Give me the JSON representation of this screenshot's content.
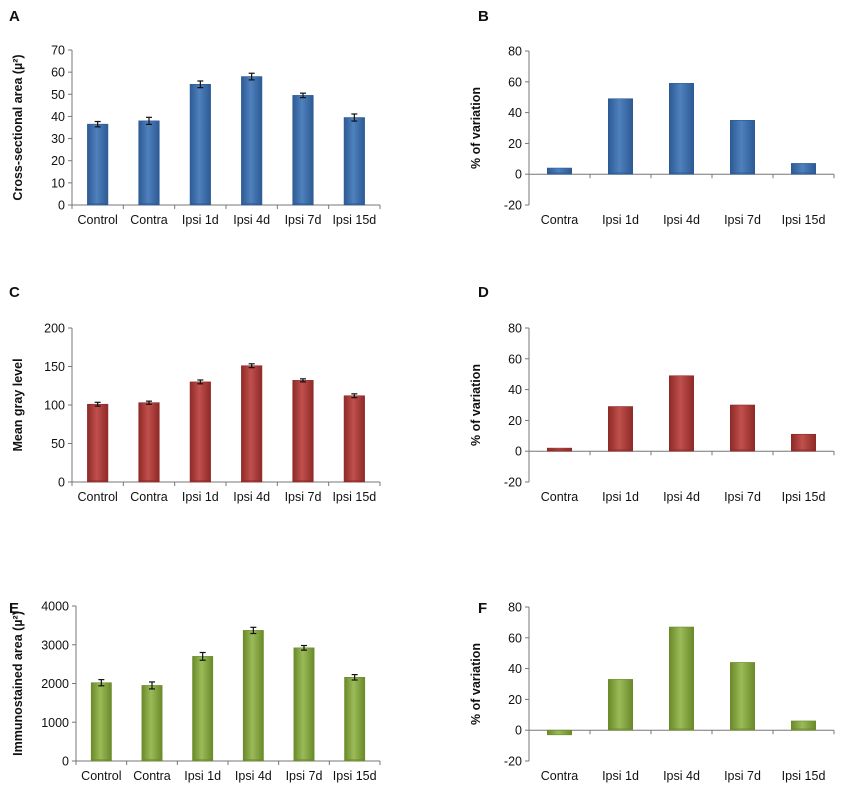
{
  "chart_data": [
    {
      "panel": "A",
      "type": "bar",
      "color": "#4F81BD",
      "color_dark": "#2C5A94",
      "categories": [
        "Control",
        "Contra",
        "Ipsi 1d",
        "Ipsi 4d",
        "Ipsi 7d",
        "Ipsi 15d"
      ],
      "values": [
        36.5,
        38,
        54.5,
        58,
        49.5,
        39.5
      ],
      "errors": [
        1.2,
        1.6,
        1.5,
        1.5,
        1.0,
        1.6
      ],
      "ylabel": "Cross-sectional area (µ²)",
      "ylim": [
        0,
        70
      ],
      "yticks": [
        0,
        10,
        20,
        30,
        40,
        50,
        60,
        70
      ]
    },
    {
      "panel": "B",
      "type": "bar",
      "color": "#4F81BD",
      "color_dark": "#2C5A94",
      "categories": [
        "Contra",
        "Ipsi 1d",
        "Ipsi 4d",
        "Ipsi 7d",
        "Ipsi 15d"
      ],
      "values": [
        4,
        49,
        59,
        35,
        7
      ],
      "ylabel": "% of variation",
      "ylim": [
        -20,
        80
      ],
      "yticks": [
        -20,
        0,
        20,
        40,
        60,
        80
      ]
    },
    {
      "panel": "C",
      "type": "bar",
      "color": "#C0504D",
      "color_dark": "#8E2A27",
      "categories": [
        "Control",
        "Contra",
        "Ipsi 1d",
        "Ipsi 4d",
        "Ipsi 7d",
        "Ipsi 15d"
      ],
      "values": [
        101,
        103,
        130,
        151,
        132,
        112
      ],
      "errors": [
        2.5,
        2.0,
        2.5,
        2.5,
        2.0,
        2.5
      ],
      "ylabel": "Mean gray level",
      "ylim": [
        0,
        200
      ],
      "yticks": [
        0,
        50,
        100,
        150,
        200
      ]
    },
    {
      "panel": "D",
      "type": "bar",
      "color": "#C0504D",
      "color_dark": "#8E2A27",
      "categories": [
        "Contra",
        "Ipsi 1d",
        "Ipsi 4d",
        "Ipsi 7d",
        "Ipsi 15d"
      ],
      "values": [
        2,
        29,
        49,
        30,
        11
      ],
      "ylabel": "% of variation",
      "ylim": [
        -20,
        80
      ],
      "yticks": [
        -20,
        0,
        20,
        40,
        60,
        80
      ]
    },
    {
      "panel": "E",
      "type": "bar",
      "color": "#9BBB59",
      "color_dark": "#6A8A2A",
      "categories": [
        "Control",
        "Contra",
        "Ipsi 1d",
        "Ipsi 4d",
        "Ipsi 7d",
        "Ipsi 15d"
      ],
      "values": [
        2020,
        1950,
        2700,
        3370,
        2920,
        2160
      ],
      "errors": [
        80,
        90,
        100,
        80,
        60,
        70
      ],
      "ylabel": "Immunostained area (µ²)",
      "ylim": [
        0,
        4000
      ],
      "yticks": [
        0,
        1000,
        2000,
        3000,
        4000
      ]
    },
    {
      "panel": "F",
      "type": "bar",
      "color": "#9BBB59",
      "color_dark": "#6A8A2A",
      "categories": [
        "Contra",
        "Ipsi 1d",
        "Ipsi 4d",
        "Ipsi 7d",
        "Ipsi 15d"
      ],
      "values": [
        -3,
        33,
        67,
        44,
        6
      ],
      "ylabel": "% of variation",
      "ylim": [
        -20,
        80
      ],
      "yticks": [
        -20,
        0,
        20,
        40,
        60,
        80
      ]
    }
  ]
}
